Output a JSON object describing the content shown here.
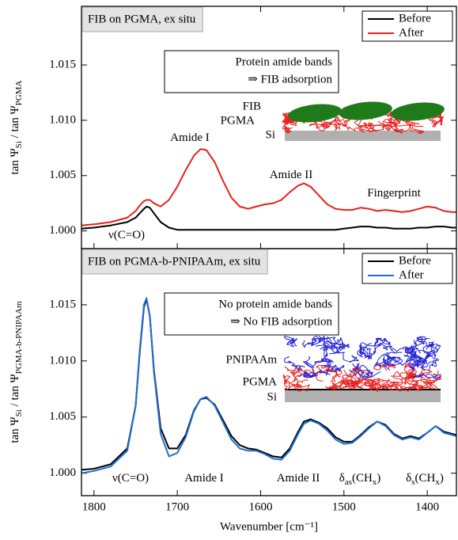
{
  "chart_data": [
    {
      "type": "line",
      "title": "FIB on PGMA, ex situ",
      "ylabel": [
        "tan Ψ",
        "Si",
        " / tan Ψ",
        "PGMA"
      ],
      "x": [
        1815,
        1800,
        1780,
        1760,
        1750,
        1745,
        1740,
        1737,
        1733,
        1728,
        1720,
        1710,
        1700,
        1690,
        1680,
        1672,
        1665,
        1655,
        1645,
        1635,
        1625,
        1615,
        1605,
        1595,
        1585,
        1575,
        1565,
        1555,
        1548,
        1540,
        1530,
        1520,
        1510,
        1500,
        1490,
        1480,
        1470,
        1460,
        1450,
        1440,
        1430,
        1420,
        1410,
        1400,
        1390,
        1380,
        1370,
        1365
      ],
      "xlim": [
        1815,
        1365
      ],
      "xticks": [
        1800,
        1700,
        1600,
        1500,
        1400
      ],
      "ylim": [
        0.9984,
        1.0203
      ],
      "yticks": [
        {
          "value": 1,
          "label": "1.000"
        },
        1.005,
        {
          "value": 1.01,
          "label": "1.010"
        },
        1.015
      ],
      "legend": "upper right",
      "series": [
        {
          "name": "Before",
          "color": "#000000",
          "values": [
            1.0002,
            1.0003,
            1.0005,
            1.0008,
            1.0012,
            1.0016,
            1.002,
            1.0022,
            1.0021,
            1.0016,
            1.0008,
            1.0003,
            1.0001,
            1.0001,
            1.0001,
            1.0001,
            1.0001,
            1.0001,
            1.0001,
            1.0001,
            1.0001,
            1.0001,
            1.0001,
            1.0001,
            1.0001,
            1.0001,
            1.0001,
            1.0001,
            1.0001,
            1.0001,
            1.0001,
            1.0001,
            1.0001,
            1.0002,
            1.0003,
            1.0004,
            1.0004,
            1.0003,
            1.0003,
            1.0002,
            1.0002,
            1.0002,
            1.0003,
            1.0003,
            1.0004,
            1.0004,
            1.0003,
            1.0003
          ]
        },
        {
          "name": "After",
          "color": "#e8201e",
          "values": [
            1.0005,
            1.0006,
            1.0008,
            1.0012,
            1.0018,
            1.0023,
            1.0027,
            1.0028,
            1.0028,
            1.0025,
            1.0022,
            1.0028,
            1.004,
            1.0055,
            1.0068,
            1.0074,
            1.0073,
            1.0062,
            1.0045,
            1.003,
            1.0022,
            1.002,
            1.0022,
            1.0024,
            1.0025,
            1.0028,
            1.0035,
            1.0041,
            1.0043,
            1.004,
            1.0032,
            1.0024,
            1.002,
            1.0019,
            1.0019,
            1.0021,
            1.002,
            1.0018,
            1.0019,
            1.0018,
            1.0017,
            1.0018,
            1.002,
            1.0022,
            1.0021,
            1.0018,
            1.0017,
            1.0017
          ]
        }
      ],
      "note": [
        "Protein amide bands",
        "⇒ FIB adsorption"
      ],
      "annotations": [
        {
          "parts": [
            "ν(C=O)"
          ],
          "color": "#e8201e"
        },
        {
          "parts": [
            "Amide I"
          ],
          "color": "#2e8b22"
        },
        {
          "parts": [
            "Amide II"
          ],
          "color": "#2e8b22"
        },
        {
          "parts": [
            "Fingerprint"
          ],
          "color": "#2e8b22"
        }
      ],
      "schematic_labels": [
        {
          "text": "FIB",
          "color": "#2e8b22"
        },
        {
          "text": "PGMA",
          "color": "#e8201e"
        },
        {
          "text": "Si",
          "color": "#000000"
        }
      ]
    },
    {
      "type": "line",
      "title": "FIB on PGMA-b-PNIPAAm, ex situ",
      "ylabel": [
        "tan Ψ",
        "Si",
        " / tan Ψ",
        "PGMA-b-PNIPAAm"
      ],
      "xlabel": "Wavenumber [cm⁻¹]",
      "x": [
        1815,
        1800,
        1780,
        1760,
        1750,
        1745,
        1740,
        1737,
        1733,
        1728,
        1720,
        1710,
        1700,
        1690,
        1680,
        1672,
        1665,
        1655,
        1645,
        1635,
        1625,
        1615,
        1605,
        1595,
        1585,
        1575,
        1565,
        1555,
        1548,
        1540,
        1530,
        1520,
        1510,
        1500,
        1490,
        1480,
        1470,
        1460,
        1450,
        1440,
        1430,
        1420,
        1410,
        1400,
        1390,
        1380,
        1370,
        1365
      ],
      "xlim": [
        1815,
        1365
      ],
      "xticks": [
        1800,
        1700,
        1600,
        1500,
        1400
      ],
      "ylim": [
        0.998,
        1.02
      ],
      "yticks": [
        {
          "value": 1,
          "label": "1.000"
        },
        1.005,
        {
          "value": 1.01,
          "label": "1.010"
        },
        1.015
      ],
      "legend": "upper right",
      "series": [
        {
          "name": "Before",
          "color": "#000000",
          "values": [
            1.0003,
            1.0004,
            1.0008,
            1.0022,
            1.006,
            1.0108,
            1.0148,
            1.0155,
            1.014,
            1.0092,
            1.004,
            1.0022,
            1.0022,
            1.0034,
            1.0056,
            1.0066,
            1.0067,
            1.0061,
            1.0047,
            1.0033,
            1.0025,
            1.0022,
            1.0021,
            1.0018,
            1.0015,
            1.0014,
            1.0022,
            1.0037,
            1.0046,
            1.0048,
            1.0045,
            1.004,
            1.0032,
            1.0028,
            1.0028,
            1.0034,
            1.0041,
            1.0046,
            1.0043,
            1.0035,
            1.0031,
            1.0033,
            1.0031,
            1.0036,
            1.0042,
            1.0037,
            1.0035,
            1.0034
          ]
        },
        {
          "name": "After",
          "color": "#1f6fd6",
          "values": [
            1.0,
            1.0002,
            1.0006,
            1.002,
            1.006,
            1.011,
            1.015,
            1.0156,
            1.014,
            1.009,
            1.0035,
            1.0015,
            1.0018,
            1.0032,
            1.0055,
            1.0066,
            1.0068,
            1.006,
            1.0045,
            1.003,
            1.0022,
            1.002,
            1.002,
            1.0017,
            1.0013,
            1.0012,
            1.002,
            1.0035,
            1.0044,
            1.0047,
            1.0044,
            1.0038,
            1.003,
            1.0026,
            1.0027,
            1.0033,
            1.004,
            1.0046,
            1.0042,
            1.0034,
            1.003,
            1.0032,
            1.003,
            1.0036,
            1.0042,
            1.0036,
            1.0034,
            1.0033
          ]
        }
      ],
      "note": [
        "No protein amide bands",
        "⇒ No FIB adsorption"
      ],
      "annotations": [
        {
          "parts": [
            "ν(C=O)"
          ],
          "color": "#e8201e"
        },
        {
          "parts": [
            "Amide I"
          ],
          "color": "#1f4fe0"
        },
        {
          "parts": [
            "Amide II"
          ],
          "color": "#1f4fe0"
        },
        {
          "parts": [
            "δ",
            "as",
            "(CH",
            "x",
            ")"
          ],
          "color": "#000000"
        },
        {
          "parts": [
            "δ",
            "s",
            "(CH",
            "x",
            ")"
          ],
          "color": "#000000"
        }
      ],
      "schematic_labels": [
        {
          "text": "PNIPAAm",
          "color": "#1f1fd6"
        },
        {
          "text": "PGMA",
          "color": "#e8201e"
        },
        {
          "text": "Si",
          "color": "#000000"
        }
      ]
    }
  ]
}
